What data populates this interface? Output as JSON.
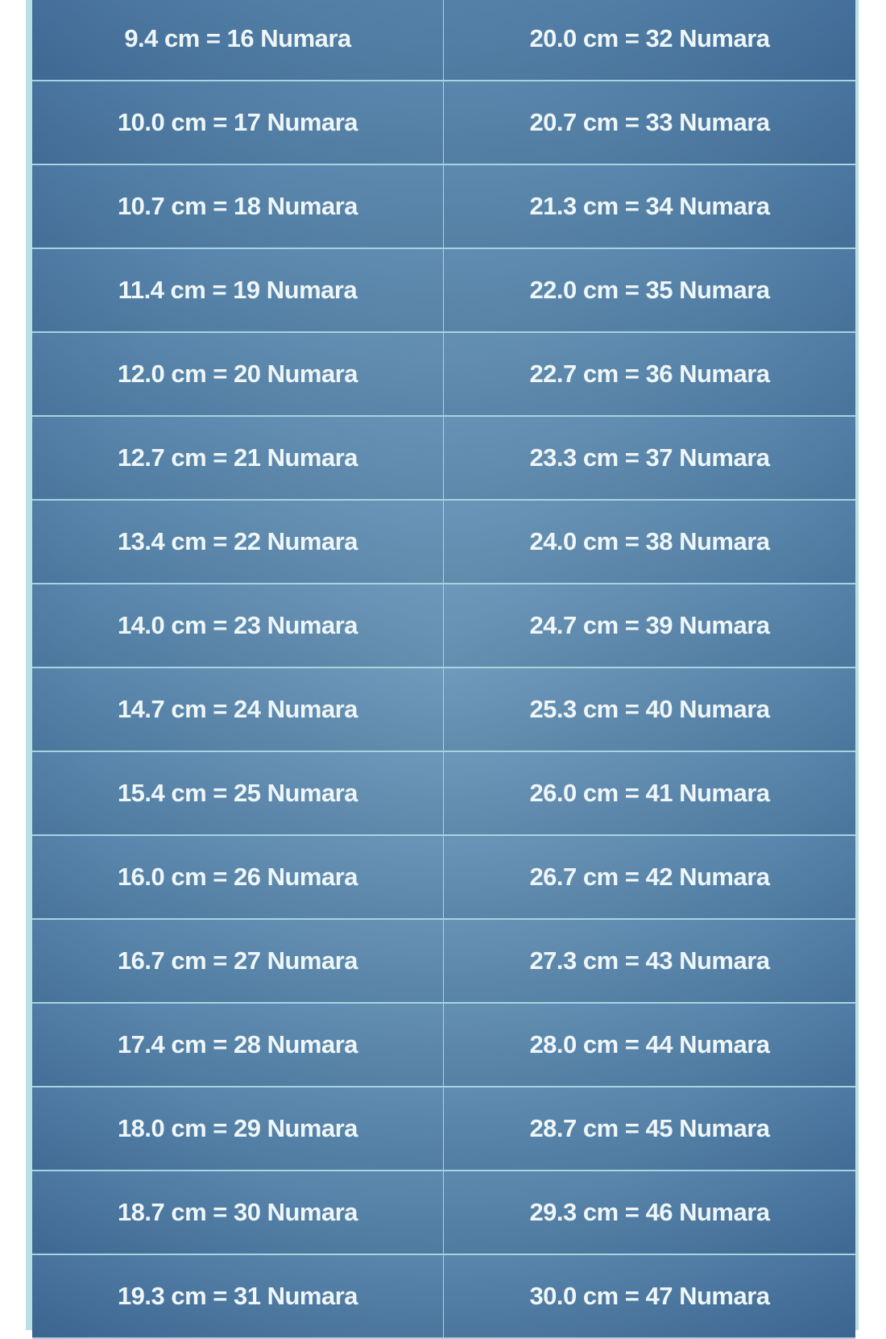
{
  "colors": {
    "cell_bg": "#5a86ad",
    "grid_line": "#a9d3e0",
    "text": "#eef6f8"
  },
  "rows": [
    [
      "9.4 cm = 16 Numara",
      "20.0 cm = 32 Numara"
    ],
    [
      "10.0 cm = 17 Numara",
      "20.7 cm = 33 Numara"
    ],
    [
      "10.7 cm = 18 Numara",
      "21.3 cm = 34 Numara"
    ],
    [
      "11.4 cm = 19 Numara",
      "22.0 cm = 35 Numara"
    ],
    [
      "12.0 cm = 20 Numara",
      "22.7 cm = 36 Numara"
    ],
    [
      "12.7 cm = 21 Numara",
      "23.3 cm = 37 Numara"
    ],
    [
      "13.4 cm = 22 Numara",
      "24.0 cm = 38 Numara"
    ],
    [
      "14.0 cm = 23 Numara",
      "24.7 cm = 39 Numara"
    ],
    [
      "14.7 cm = 24 Numara",
      "25.3 cm = 40 Numara"
    ],
    [
      "15.4 cm = 25 Numara",
      "26.0 cm = 41 Numara"
    ],
    [
      "16.0 cm = 26 Numara",
      "26.7 cm = 42 Numara"
    ],
    [
      "16.7 cm = 27 Numara",
      "27.3 cm = 43 Numara"
    ],
    [
      "17.4 cm = 28 Numara",
      "28.0 cm = 44 Numara"
    ],
    [
      "18.0 cm = 29 Numara",
      "28.7 cm = 45 Numara"
    ],
    [
      "18.7 cm = 30 Numara",
      "29.3 cm = 46 Numara"
    ],
    [
      "19.3 cm = 31 Numara",
      "30.0 cm = 47 Numara"
    ]
  ]
}
